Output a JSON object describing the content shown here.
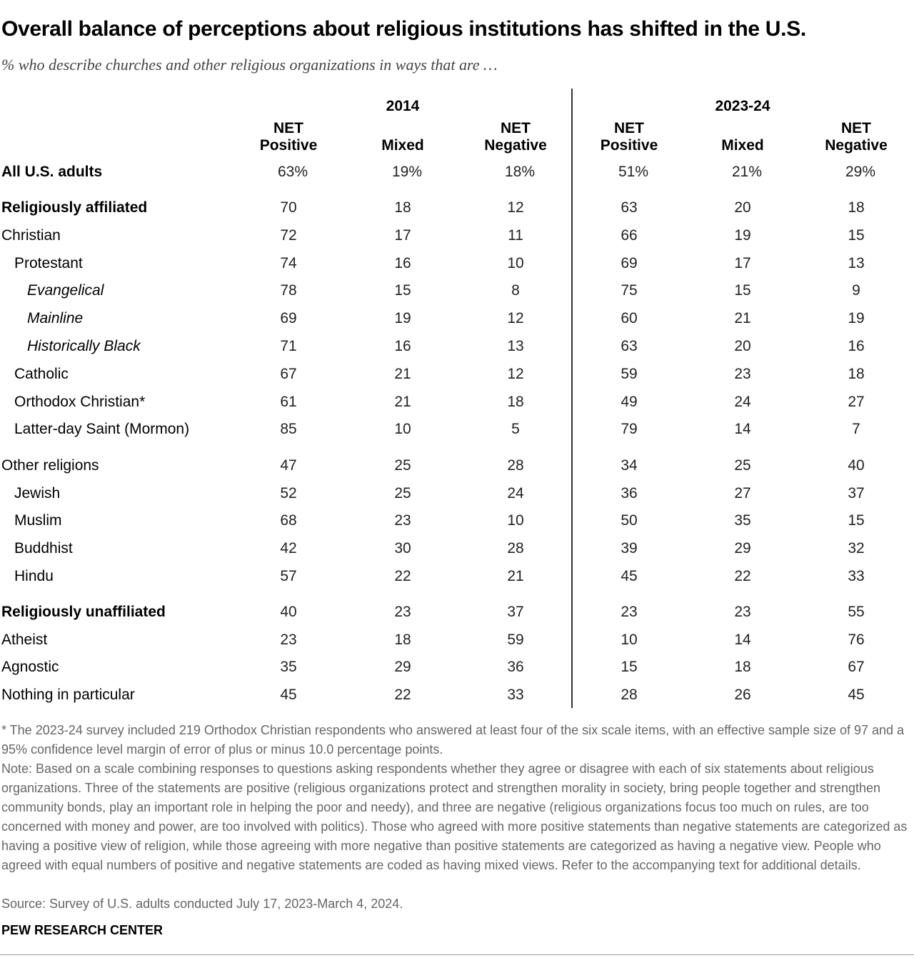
{
  "header": {
    "title": "Overall balance of perceptions about religious institutions has shifted in the U.S.",
    "subtitle": "% who describe churches and other religious organizations in ways that are …"
  },
  "table": {
    "groups": [
      "2014",
      "2023-24"
    ],
    "columns": [
      "NET Positive",
      "Mixed",
      "NET Negative",
      "NET Positive",
      "Mixed",
      "NET Negative"
    ],
    "rows": [
      {
        "label": "All U.S. adults",
        "values": [
          "63%",
          "19%",
          "18%",
          "51%",
          "21%",
          "29%"
        ]
      },
      {
        "label": "Religiously affiliated",
        "values": [
          "70",
          "18",
          "12",
          "63",
          "20",
          "18"
        ]
      },
      {
        "label": "Christian",
        "values": [
          "72",
          "17",
          "11",
          "66",
          "19",
          "15"
        ]
      },
      {
        "label": "Protestant",
        "values": [
          "74",
          "16",
          "10",
          "69",
          "17",
          "13"
        ]
      },
      {
        "label": "Evangelical",
        "values": [
          "78",
          "15",
          "8",
          "75",
          "15",
          "9"
        ]
      },
      {
        "label": "Mainline",
        "values": [
          "69",
          "19",
          "12",
          "60",
          "21",
          "19"
        ]
      },
      {
        "label": "Historically Black",
        "values": [
          "71",
          "16",
          "13",
          "63",
          "20",
          "16"
        ]
      },
      {
        "label": "Catholic",
        "values": [
          "67",
          "21",
          "12",
          "59",
          "23",
          "18"
        ]
      },
      {
        "label": "Orthodox Christian*",
        "values": [
          "61",
          "21",
          "18",
          "49",
          "24",
          "27"
        ]
      },
      {
        "label": "Latter-day Saint (Mormon)",
        "values": [
          "85",
          "10",
          "5",
          "79",
          "14",
          "7"
        ]
      },
      {
        "label": "Other religions",
        "values": [
          "47",
          "25",
          "28",
          "34",
          "25",
          "40"
        ]
      },
      {
        "label": "Jewish",
        "values": [
          "52",
          "25",
          "24",
          "36",
          "27",
          "37"
        ]
      },
      {
        "label": "Muslim",
        "values": [
          "68",
          "23",
          "10",
          "50",
          "35",
          "15"
        ]
      },
      {
        "label": "Buddhist",
        "values": [
          "42",
          "30",
          "28",
          "39",
          "29",
          "32"
        ]
      },
      {
        "label": "Hindu",
        "values": [
          "57",
          "22",
          "21",
          "45",
          "22",
          "33"
        ]
      },
      {
        "label": "Religiously unaffiliated",
        "values": [
          "40",
          "23",
          "37",
          "23",
          "23",
          "55"
        ]
      },
      {
        "label": "Atheist",
        "values": [
          "23",
          "18",
          "59",
          "10",
          "14",
          "76"
        ]
      },
      {
        "label": "Agnostic",
        "values": [
          "35",
          "29",
          "36",
          "15",
          "18",
          "67"
        ]
      },
      {
        "label": "Nothing in particular",
        "values": [
          "45",
          "22",
          "33",
          "28",
          "26",
          "45"
        ]
      }
    ]
  },
  "footer": {
    "footnote": "* The 2023-24 survey included 219 Orthodox Christian respondents who answered at least four of the six scale items, with an effective sample size of 97 and a 95% confidence level margin of error of plus or minus 10.0 percentage points.",
    "note": "Note: Based on a scale combining responses to questions asking respondents whether they agree or disagree with each of six statements about religious organizations. Three of the statements are positive (religious organizations protect and strengthen morality in society, bring people together and strengthen community bonds, play an important role in helping the poor and needy), and three are negative (religious organizations focus too much on rules, are too concerned with money and power, are too involved with politics). Those who agreed with more positive statements than negative statements are categorized as having a positive view of religion, while those agreeing with more negative than positive statements are categorized as having a negative view. People who agreed with equal numbers of positive and negative statements are coded as having mixed views. Refer to the accompanying text for additional details.",
    "source": "Source: Survey of U.S. adults conducted July 17, 2023-March 4, 2024.",
    "brand": "PEW RESEARCH CENTER"
  }
}
